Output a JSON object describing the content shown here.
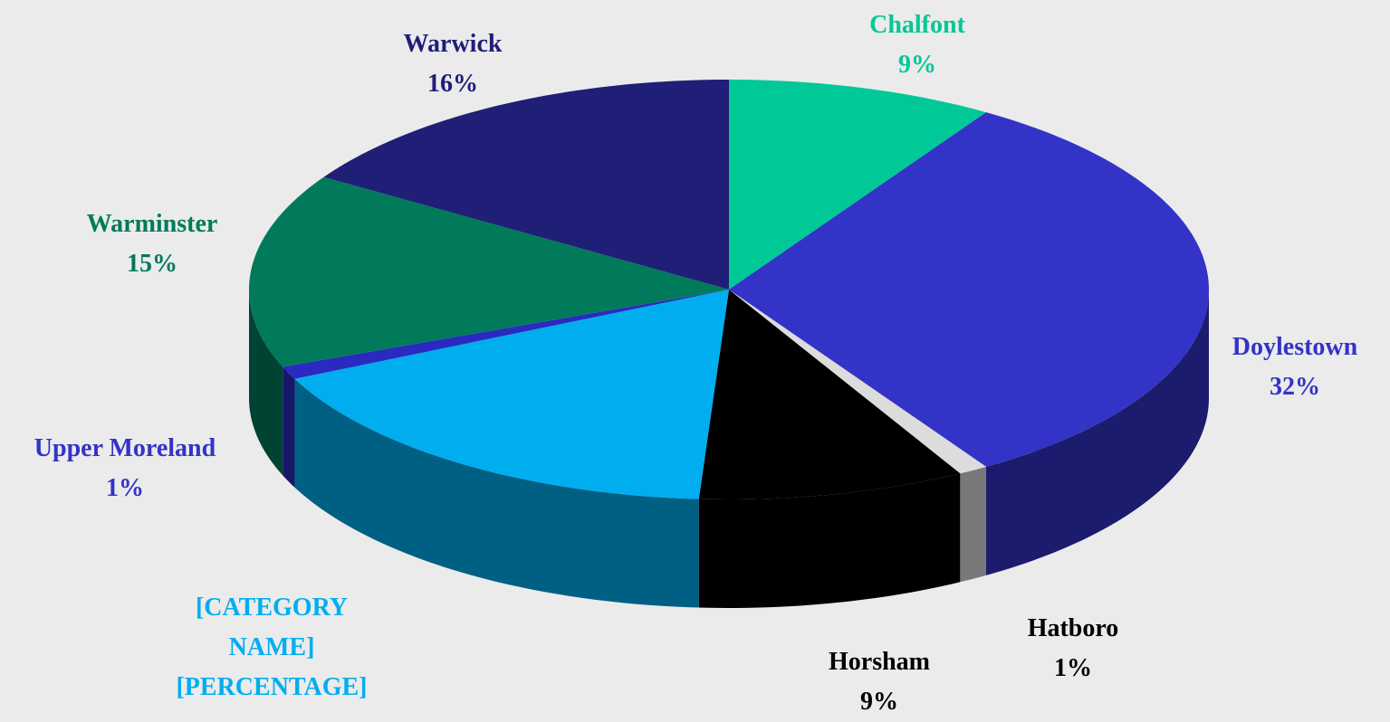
{
  "chart_data": {
    "type": "pie",
    "categories": [
      "Chalfont",
      "Doylestown",
      "Hatboro",
      "Horsham",
      "[CATEGORY NAME]",
      "Upper Moreland",
      "Warminster",
      "Warwick"
    ],
    "values": [
      9,
      32,
      1,
      9,
      17,
      1,
      15,
      16
    ],
    "value_labels": [
      "9%",
      "32%",
      "1%",
      "9%",
      "[PERCENTAGE]",
      "1%",
      "15%",
      "16%"
    ],
    "colors": [
      "#00c896",
      "#3333c8",
      "#dcdcdc",
      "#000000",
      "#00aeef",
      "#2a2ac0",
      "#007a5a",
      "#1f1f78"
    ],
    "label_colors": [
      "#00c896",
      "#3333c8",
      "#000000",
      "#000000",
      "#00aeef",
      "#3333c8",
      "#007a5a",
      "#1f1f78"
    ]
  }
}
